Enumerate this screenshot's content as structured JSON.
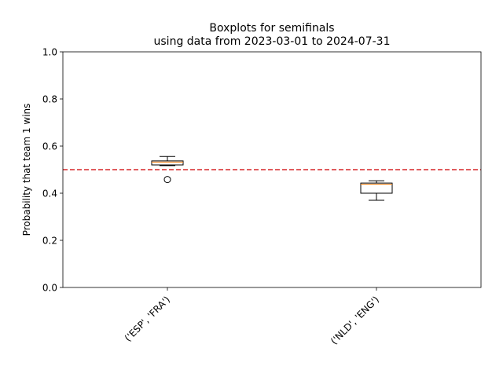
{
  "chart_data": {
    "type": "boxplot",
    "title_line1": "Boxplots for semifinals",
    "title_line2": "using data from 2023-03-01 to 2024-07-31",
    "xlabel": "",
    "ylabel": "Probability that team 1 wins",
    "ylim": [
      0.0,
      1.0
    ],
    "yticks": [
      "0.0",
      "0.2",
      "0.4",
      "0.6",
      "0.8",
      "1.0"
    ],
    "categories": [
      "('ESP', 'FRA')",
      "('NLD', 'ENG')"
    ],
    "boxes": [
      {
        "whisker_low": 0.517,
        "q1": 0.52,
        "median": 0.532,
        "q3": 0.537,
        "whisker_high": 0.556,
        "outliers": [
          0.458
        ]
      },
      {
        "whisker_low": 0.37,
        "q1": 0.4,
        "median": 0.438,
        "q3": 0.443,
        "whisker_high": 0.453,
        "outliers": []
      }
    ],
    "reference_line": {
      "y": 0.5,
      "color": "#d62728",
      "style": "dashed"
    },
    "median_color": "#ff7f0e",
    "grid": false,
    "legend": "none"
  }
}
